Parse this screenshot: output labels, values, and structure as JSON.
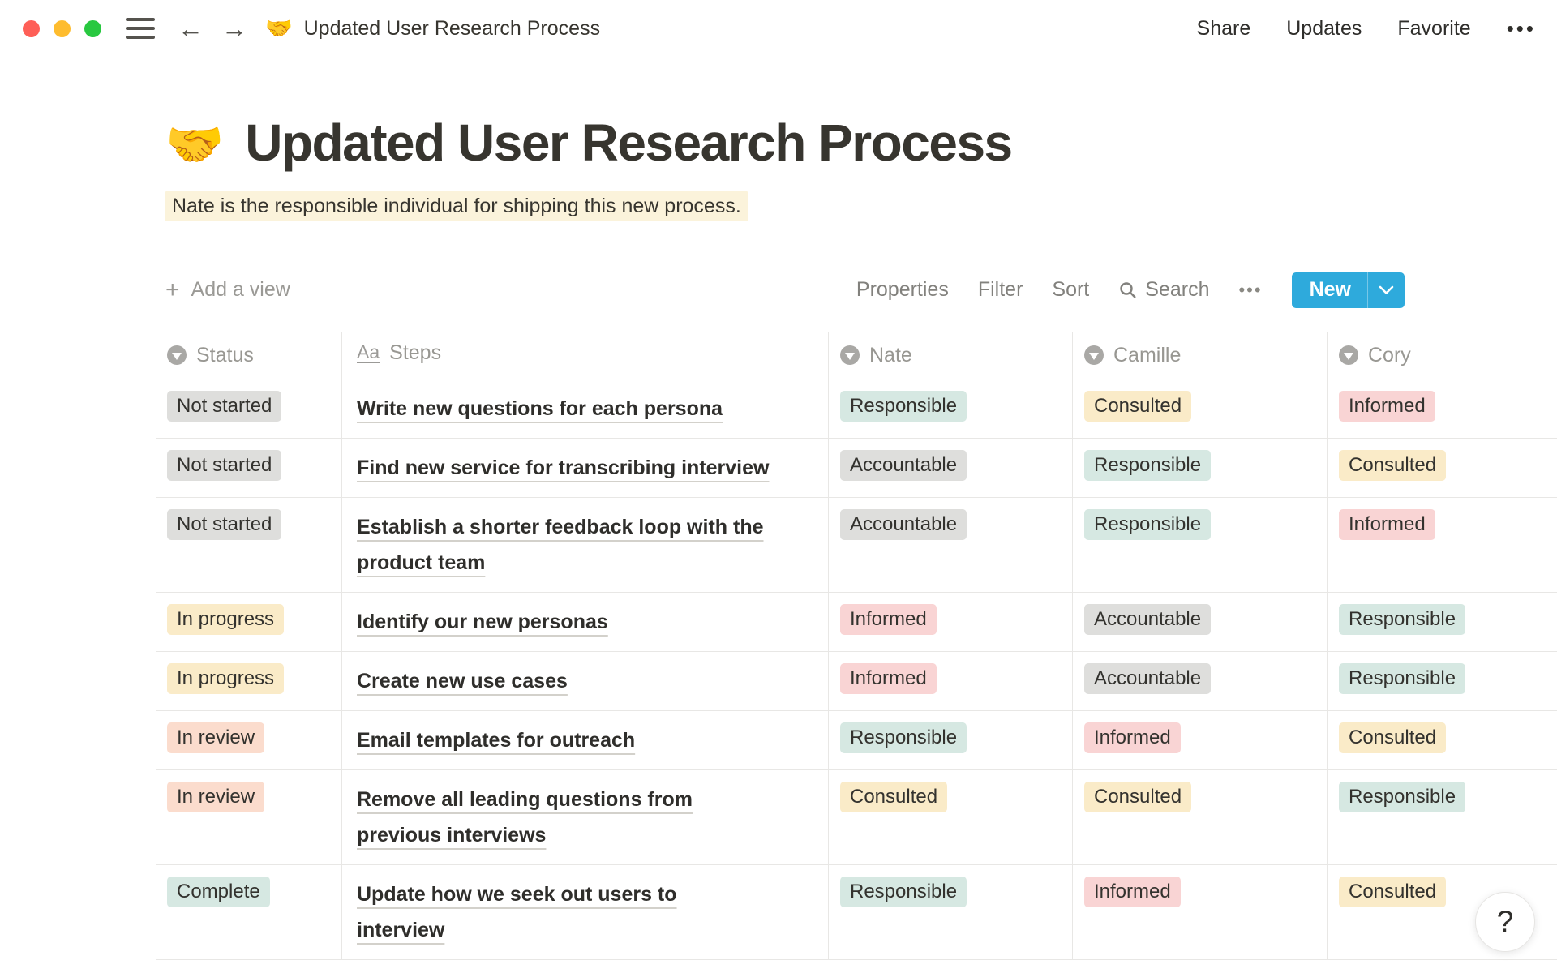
{
  "window": {
    "doc_emoji": "🤝",
    "doc_title": "Updated User Research Process",
    "actions": {
      "share": "Share",
      "updates": "Updates",
      "favorite": "Favorite",
      "more": "•••"
    }
  },
  "page": {
    "emoji": "🤝",
    "title": "Updated User Research Process",
    "callout": "Nate is the responsible individual for shipping this new process."
  },
  "toolbar": {
    "add_view": "Add a view",
    "properties": "Properties",
    "filter": "Filter",
    "sort": "Sort",
    "search": "Search",
    "more": "•••",
    "new_label": "New"
  },
  "table": {
    "columns": [
      {
        "label": "Status",
        "icon": "select"
      },
      {
        "label": "Steps",
        "icon": "text"
      },
      {
        "label": "Nate",
        "icon": "select"
      },
      {
        "label": "Camille",
        "icon": "select"
      },
      {
        "label": "Cory",
        "icon": "select"
      }
    ],
    "rows": [
      {
        "cells": [
          {
            "text": "Not started",
            "color": "gray"
          },
          {
            "text": "Write new questions for each persona",
            "type": "title"
          },
          {
            "text": "Responsible",
            "color": "green"
          },
          {
            "text": "Consulted",
            "color": "yellow"
          },
          {
            "text": "Informed",
            "color": "pink"
          }
        ]
      },
      {
        "cells": [
          {
            "text": "Not started",
            "color": "gray"
          },
          {
            "text": "Find new service for transcribing interview",
            "type": "title"
          },
          {
            "text": "Accountable",
            "color": "gray"
          },
          {
            "text": "Responsible",
            "color": "green"
          },
          {
            "text": "Consulted",
            "color": "yellow"
          }
        ]
      },
      {
        "cells": [
          {
            "text": "Not started",
            "color": "gray"
          },
          {
            "text": "Establish a shorter feedback loop with the\nproduct team",
            "type": "title"
          },
          {
            "text": "Accountable",
            "color": "gray"
          },
          {
            "text": "Responsible",
            "color": "green"
          },
          {
            "text": "Informed",
            "color": "pink"
          }
        ]
      },
      {
        "cells": [
          {
            "text": "In progress",
            "color": "yellow"
          },
          {
            "text": "Identify our new personas",
            "type": "title"
          },
          {
            "text": "Informed",
            "color": "pink"
          },
          {
            "text": "Accountable",
            "color": "gray"
          },
          {
            "text": "Responsible",
            "color": "green"
          }
        ]
      },
      {
        "cells": [
          {
            "text": "In progress",
            "color": "yellow"
          },
          {
            "text": "Create new use cases",
            "type": "title"
          },
          {
            "text": "Informed",
            "color": "pink"
          },
          {
            "text": "Accountable",
            "color": "gray"
          },
          {
            "text": "Responsible",
            "color": "green"
          }
        ]
      },
      {
        "cells": [
          {
            "text": "In review",
            "color": "salmon"
          },
          {
            "text": "Email templates for outreach",
            "type": "title"
          },
          {
            "text": "Responsible",
            "color": "green"
          },
          {
            "text": "Informed",
            "color": "pink"
          },
          {
            "text": "Consulted",
            "color": "yellow"
          }
        ]
      },
      {
        "cells": [
          {
            "text": "In review",
            "color": "salmon"
          },
          {
            "text": "Remove all leading questions from\nprevious interviews",
            "type": "title"
          },
          {
            "text": "Consulted",
            "color": "yellow"
          },
          {
            "text": "Consulted",
            "color": "yellow"
          },
          {
            "text": "Responsible",
            "color": "green"
          }
        ]
      },
      {
        "cells": [
          {
            "text": "Complete",
            "color": "green"
          },
          {
            "text": "Update how we seek out users to\ninterview",
            "type": "title"
          },
          {
            "text": "Responsible",
            "color": "green"
          },
          {
            "text": "Informed",
            "color": "pink"
          },
          {
            "text": "Consulted",
            "color": "yellow"
          }
        ]
      }
    ]
  },
  "help": {
    "label": "?"
  },
  "colors": {
    "accent_blue": "#2EAADC",
    "highlight_yellow": "#FBF3DB",
    "badge_gray": "#DEDEDC",
    "badge_yellow": "#FAEBC8",
    "badge_green": "#D6E8E2",
    "badge_pink": "#F9D4D4",
    "badge_salmon": "#FBDCCD",
    "traffic_red": "#FE5F57",
    "traffic_yellow": "#FEBC2E",
    "traffic_green": "#28C840"
  }
}
